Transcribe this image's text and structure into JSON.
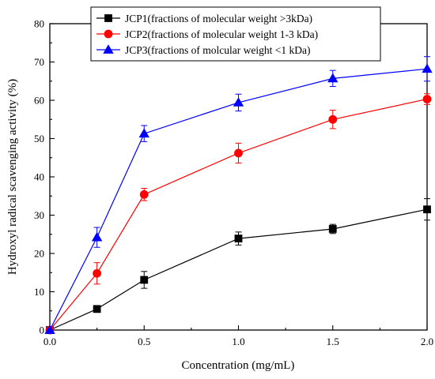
{
  "chart_data": {
    "type": "line",
    "title": "",
    "xlabel": "Concentration (mg/mL)",
    "ylabel": "Hydroxyl radical scavenging activity (%)",
    "xlim": [
      0.0,
      2.0
    ],
    "ylim": [
      0,
      80
    ],
    "x_ticks": [
      "0.0",
      "0.5",
      "1.0",
      "1.5",
      "2.0"
    ],
    "y_ticks": [
      "0",
      "10",
      "20",
      "30",
      "40",
      "50",
      "60",
      "70",
      "80"
    ],
    "x": [
      0,
      0.25,
      0.5,
      1.0,
      1.5,
      2.0
    ],
    "grid": false,
    "legend_position": "top-left",
    "series": [
      {
        "name": "JCP1(fractions of molecular weight >3kDa)",
        "color": "#000000",
        "marker": "square",
        "values": [
          0,
          5.5,
          13.1,
          23.9,
          26.4,
          31.5
        ],
        "errors": [
          0,
          0.6,
          2.2,
          1.7,
          1.2,
          2.8
        ]
      },
      {
        "name": "JCP2(fractions of molecular weight 1-3 kDa)",
        "color": "#ff0000",
        "marker": "circle",
        "values": [
          0,
          14.8,
          35.4,
          46.2,
          55.0,
          60.3
        ],
        "errors": [
          0,
          2.8,
          1.6,
          2.6,
          2.4,
          1.4
        ]
      },
      {
        "name": "JCP3(fractions of molcular weight <1 kDa)",
        "color": "#0000ff",
        "marker": "triangle",
        "values": [
          0,
          24.2,
          51.3,
          59.4,
          65.7,
          68.2
        ],
        "errors": [
          0,
          2.6,
          2.1,
          2.2,
          2.1,
          3.2
        ]
      }
    ]
  }
}
